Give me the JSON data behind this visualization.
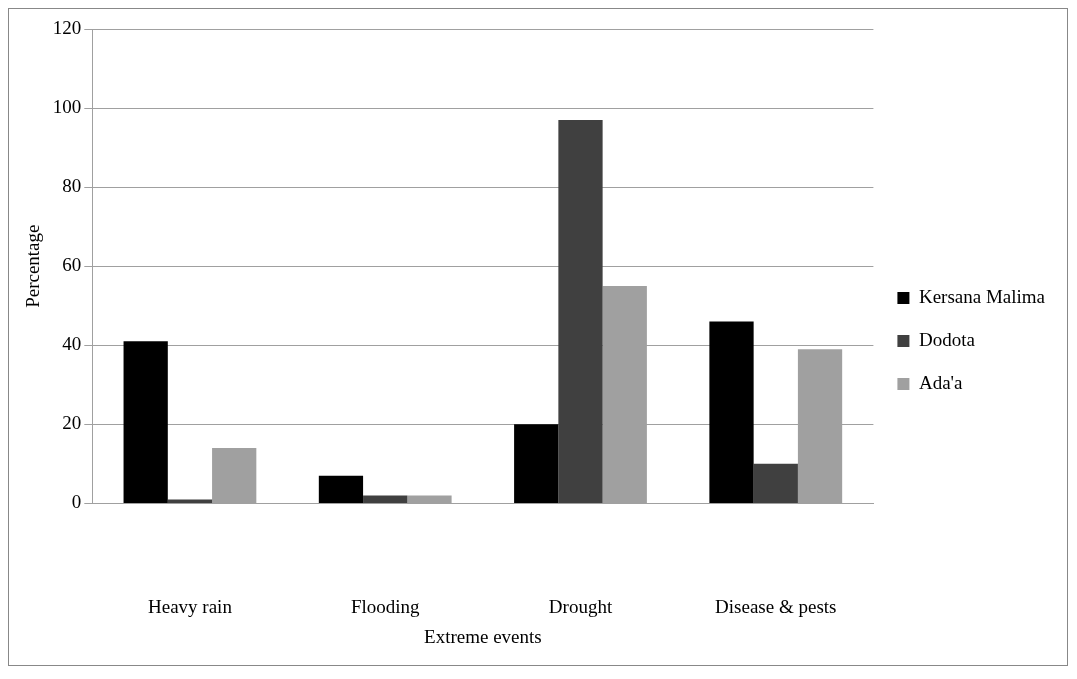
{
  "chart_data": {
    "type": "bar",
    "xlabel": "Extreme events",
    "ylabel": "Percentage",
    "categories": [
      "Heavy rain",
      "Flooding",
      "Drought",
      "Disease & pests"
    ],
    "series": [
      {
        "name": "Kersana Malima",
        "color": "#000000",
        "values": [
          41,
          7,
          20,
          46
        ]
      },
      {
        "name": "Dodota",
        "color": "#404040",
        "values": [
          1,
          2,
          97,
          10
        ]
      },
      {
        "name": "Ada'a",
        "color": "#a0a0a0",
        "values": [
          14,
          2,
          55,
          39
        ]
      }
    ],
    "ylim": [
      0,
      120
    ],
    "yticks": [
      0,
      20,
      40,
      60,
      80,
      100,
      120
    ],
    "grid": "y",
    "legend": "right"
  }
}
